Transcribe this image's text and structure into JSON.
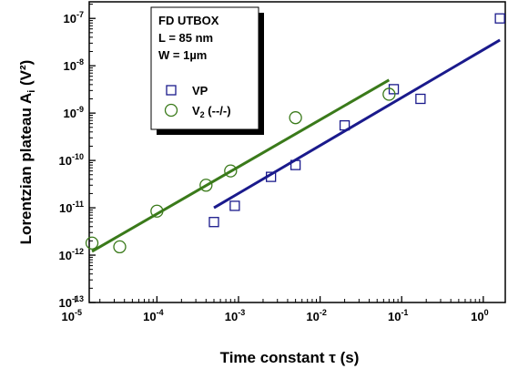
{
  "chart_data": {
    "type": "scatter",
    "x_scale": "log",
    "y_scale": "log",
    "xlim": [
      1e-05,
      2
    ],
    "ylim": [
      1e-13,
      2e-07
    ],
    "x_ticks": [
      {
        "value": 1e-05,
        "base": "10",
        "exp": "-5"
      },
      {
        "value": 0.0001,
        "base": "10",
        "exp": "-4"
      },
      {
        "value": 0.001,
        "base": "10",
        "exp": "-3"
      },
      {
        "value": 0.01,
        "base": "10",
        "exp": "-2"
      },
      {
        "value": 0.1,
        "base": "10",
        "exp": "-1"
      },
      {
        "value": 1,
        "base": "10",
        "exp": "0"
      }
    ],
    "y_ticks": [
      {
        "value": 1e-13,
        "base": "10",
        "exp": "-13"
      },
      {
        "value": 1e-12,
        "base": "10",
        "exp": "-12"
      },
      {
        "value": 1e-11,
        "base": "10",
        "exp": "-11"
      },
      {
        "value": 1e-10,
        "base": "10",
        "exp": "-10"
      },
      {
        "value": 1e-09,
        "base": "10",
        "exp": "-9"
      },
      {
        "value": 1e-08,
        "base": "10",
        "exp": "-8"
      },
      {
        "value": 1e-07,
        "base": "10",
        "exp": "-7"
      }
    ],
    "xlabel": "Time constant τ (s)",
    "ylabel_main": "Lorentzian plateau A",
    "ylabel_sub": "i",
    "ylabel_unit": " (V²)",
    "grid": false,
    "legend_placement": "top-left",
    "info_box": [
      "FD UTBOX",
      "L = 85 nm",
      "W = 1µm"
    ],
    "series": [
      {
        "name": "VP",
        "marker": "square",
        "color": "#1a1a8c",
        "points": [
          {
            "x": 0.0005,
            "y": 5e-12
          },
          {
            "x": 0.0009,
            "y": 1.1e-11
          },
          {
            "x": 0.0025,
            "y": 4.5e-11
          },
          {
            "x": 0.005,
            "y": 8e-11
          },
          {
            "x": 0.02,
            "y": 5.5e-10
          },
          {
            "x": 0.08,
            "y": 3.2e-09
          },
          {
            "x": 0.17,
            "y": 2e-09
          },
          {
            "x": 1.6,
            "y": 1e-07
          }
        ],
        "fit": [
          {
            "x": 0.0005,
            "y": 1e-11
          },
          {
            "x": 1.6,
            "y": 3.5e-08
          }
        ]
      },
      {
        "name": "V",
        "name_sub": "2",
        "name_suffix": " (--/-)",
        "marker": "circle",
        "color": "#3a7a1a",
        "points": [
          {
            "x": 1.6e-05,
            "y": 1.8e-12
          },
          {
            "x": 3.5e-05,
            "y": 1.5e-12
          },
          {
            "x": 0.0001,
            "y": 8.5e-12
          },
          {
            "x": 0.0004,
            "y": 3e-11
          },
          {
            "x": 0.0008,
            "y": 6e-11
          },
          {
            "x": 0.005,
            "y": 8e-10
          },
          {
            "x": 0.07,
            "y": 2.5e-09
          }
        ],
        "fit": [
          {
            "x": 1.6e-05,
            "y": 1.2e-12
          },
          {
            "x": 0.07,
            "y": 5e-09
          }
        ]
      }
    ]
  }
}
